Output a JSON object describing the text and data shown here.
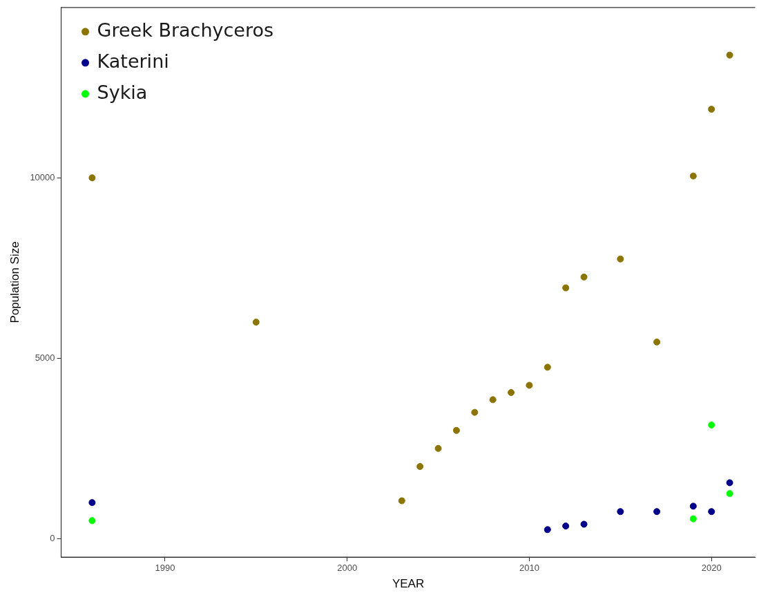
{
  "chart_data": {
    "type": "scatter",
    "xlabel": "YEAR",
    "ylabel": "Population Size",
    "xlim": [
      1984.3,
      2022.4
    ],
    "xticks": [
      1990,
      2000,
      2010,
      2020
    ],
    "ylim": [
      -510,
      14720
    ],
    "yticks": [
      0,
      5000,
      10000
    ],
    "grid": false,
    "legend": "top left",
    "marker": "circle",
    "series": [
      {
        "name": "Greek Brachyceros",
        "color": "#8b7500",
        "x": [
          1986,
          1995,
          2003,
          2004,
          2005,
          2006,
          2007,
          2008,
          2009,
          2010,
          2011,
          2012,
          2013,
          2015,
          2017,
          2019,
          2020,
          2021
        ],
        "values": [
          10000,
          6000,
          1050,
          2000,
          2500,
          3000,
          3500,
          3850,
          4050,
          4250,
          4750,
          6950,
          7250,
          7750,
          5450,
          10050,
          11900,
          13400
        ]
      },
      {
        "name": "Katerini",
        "color": "#00008b",
        "x": [
          1986,
          2011,
          2012,
          2013,
          2015,
          2017,
          2019,
          2020,
          2021
        ],
        "values": [
          1000,
          250,
          350,
          400,
          750,
          750,
          900,
          750,
          1550
        ]
      },
      {
        "name": "Sykia",
        "color": "#00ff00",
        "x": [
          1986,
          2019,
          2020,
          2021
        ],
        "values": [
          500,
          550,
          3150,
          1250
        ]
      }
    ]
  }
}
